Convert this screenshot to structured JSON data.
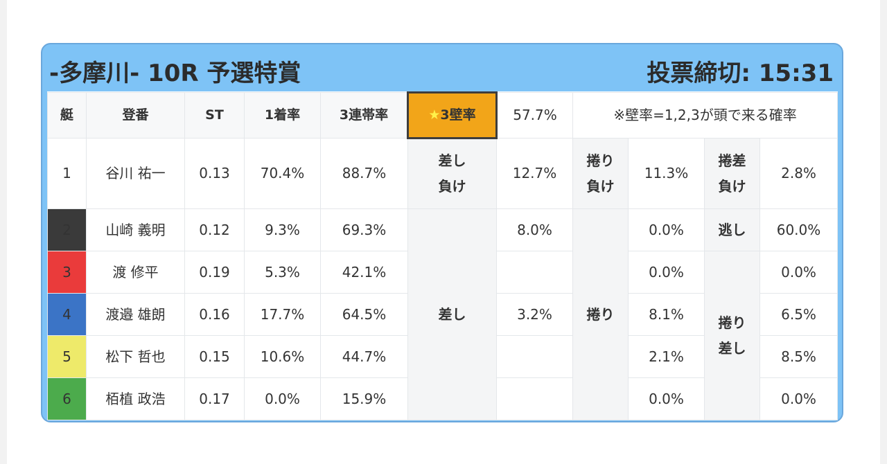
{
  "header": {
    "race_title": "-多摩川- 10R 予選特賞",
    "deadline": "投票締切: 15:31"
  },
  "columns": {
    "boat": "艇",
    "racer": "登番",
    "st": "ST",
    "win_rate": "1着率",
    "top3_rate": "3連帯率",
    "wall_star": "★",
    "wall_label": "3壁率",
    "wall_value": "57.7%",
    "wall_note": "※壁率=1,2,3が頭で来る確率"
  },
  "rows": [
    {
      "boat": "1",
      "name": "谷川 祐一",
      "st": "0.13",
      "win": "70.4%",
      "top3": "88.7%"
    },
    {
      "boat": "2",
      "name": "山崎 義明",
      "st": "0.12",
      "win": "9.3%",
      "top3": "69.3%"
    },
    {
      "boat": "3",
      "name": "渡 修平",
      "st": "0.19",
      "win": "5.3%",
      "top3": "42.1%"
    },
    {
      "boat": "4",
      "name": "渡邉 雄朗",
      "st": "0.16",
      "win": "17.7%",
      "top3": "64.5%"
    },
    {
      "boat": "5",
      "name": "松下 哲也",
      "st": "0.15",
      "win": "10.6%",
      "top3": "44.7%"
    },
    {
      "boat": "6",
      "name": "栢植 政浩",
      "st": "0.17",
      "win": "0.0%",
      "top3": "15.9%"
    }
  ],
  "kimarite": {
    "row1": {
      "sashi_make_l1": "差し",
      "sashi_make_l2": "負け",
      "sashi_make_val": "12.7%",
      "makuri_make_l1": "捲り",
      "makuri_make_l2": "負け",
      "makuri_make_val": "11.3%",
      "makurisashi_make_l1": "捲差",
      "makurisashi_make_l2": "負け",
      "makurisashi_make_val": "2.8%"
    },
    "sashi_label": "差し",
    "sashi_values": [
      "8.0%",
      "",
      "3.2%",
      "",
      ""
    ],
    "makuri_label": "捲り",
    "makuri_values": [
      "0.0%",
      "0.0%",
      "8.1%",
      "2.1%",
      "0.0%"
    ],
    "nige_label": "逃し",
    "nige_value": "60.0%",
    "makurisashi_l1": "捲り",
    "makurisashi_l2": "差し",
    "makurisashi_values": [
      "0.0%",
      "6.5%",
      "8.5%",
      "0.0%"
    ]
  },
  "colors": {
    "panel_bg": "#7ec3f6",
    "wall_header": "#f2a519",
    "boat_2": "#3a3a3a",
    "boat_3": "#ea3b3b",
    "boat_4": "#3b74c6",
    "boat_5": "#eeea6a",
    "boat_6": "#4cab4c"
  }
}
